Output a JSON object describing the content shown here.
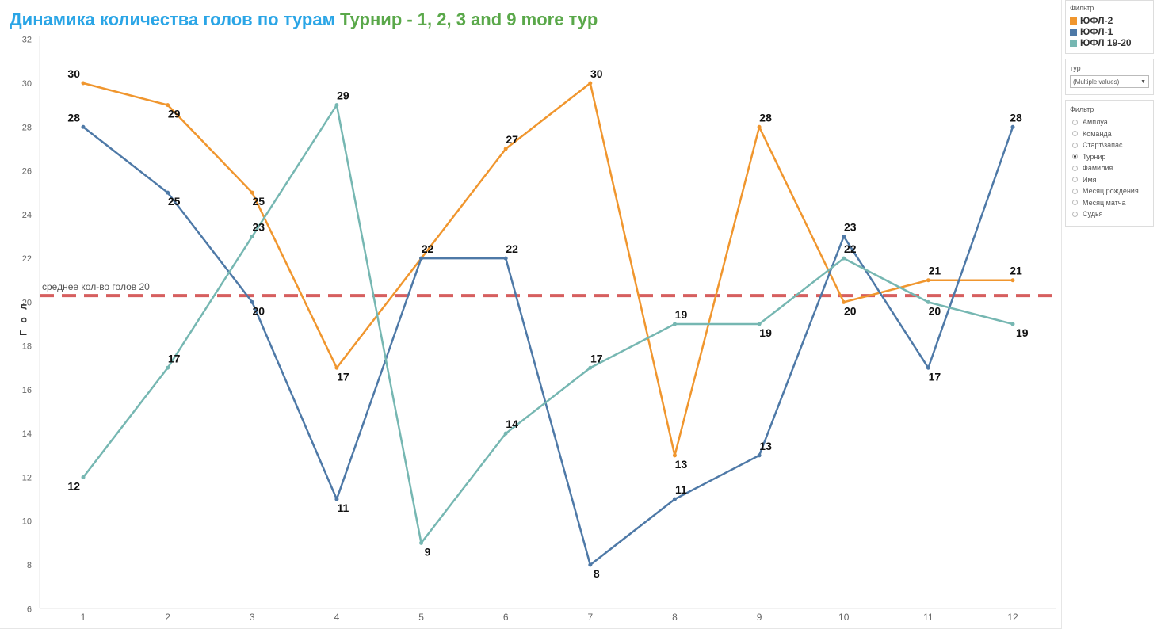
{
  "title_part1": "Динамика количества голов по турам",
  "title_part2": "Турнир - 1, 2, 3 and 9 more тур",
  "chart_data": {
    "type": "line",
    "x": [
      1,
      2,
      3,
      4,
      5,
      6,
      7,
      8,
      9,
      10,
      11,
      12
    ],
    "ylabel": "Г о л",
    "xlabel": "",
    "ylim": [
      6,
      32
    ],
    "yticks": [
      6,
      8,
      10,
      12,
      14,
      16,
      18,
      20,
      22,
      24,
      26,
      28,
      30,
      32
    ],
    "grid": false,
    "series": [
      {
        "name": "ЮФЛ-2",
        "color": "#f0962e",
        "values": [
          30,
          29,
          25,
          17,
          22,
          27,
          30,
          13,
          28,
          20,
          21,
          21
        ]
      },
      {
        "name": "ЮФЛ-1",
        "color": "#4e79a7",
        "values": [
          28,
          25,
          20,
          11,
          22,
          22,
          8,
          11,
          13,
          23,
          17,
          28
        ]
      },
      {
        "name": "ЮФЛ 19-20",
        "color": "#76b7b2",
        "values": [
          12,
          17,
          23,
          29,
          9,
          14,
          17,
          19,
          19,
          22,
          20,
          19
        ]
      }
    ],
    "reference_line": {
      "value": 20.3,
      "label": "среднее кол-во голов 20",
      "color": "#d65f5f"
    }
  },
  "legend": {
    "title": "Фильтр",
    "items": [
      {
        "label": "ЮФЛ-2",
        "color": "#f0962e"
      },
      {
        "label": "ЮФЛ-1",
        "color": "#4e79a7"
      },
      {
        "label": "ЮФЛ 19-20",
        "color": "#76b7b2"
      }
    ]
  },
  "tour_filter": {
    "title": "тур",
    "value": "(Multiple values)"
  },
  "param_filter": {
    "title": "Фильтр",
    "selected": "Турнир",
    "options": [
      "Амплуа",
      "Команда",
      "Старт\\запас",
      "Турнир",
      "Фамилия",
      "Имя",
      "Месяц рождения",
      "Месяц матча",
      "Судья"
    ]
  }
}
